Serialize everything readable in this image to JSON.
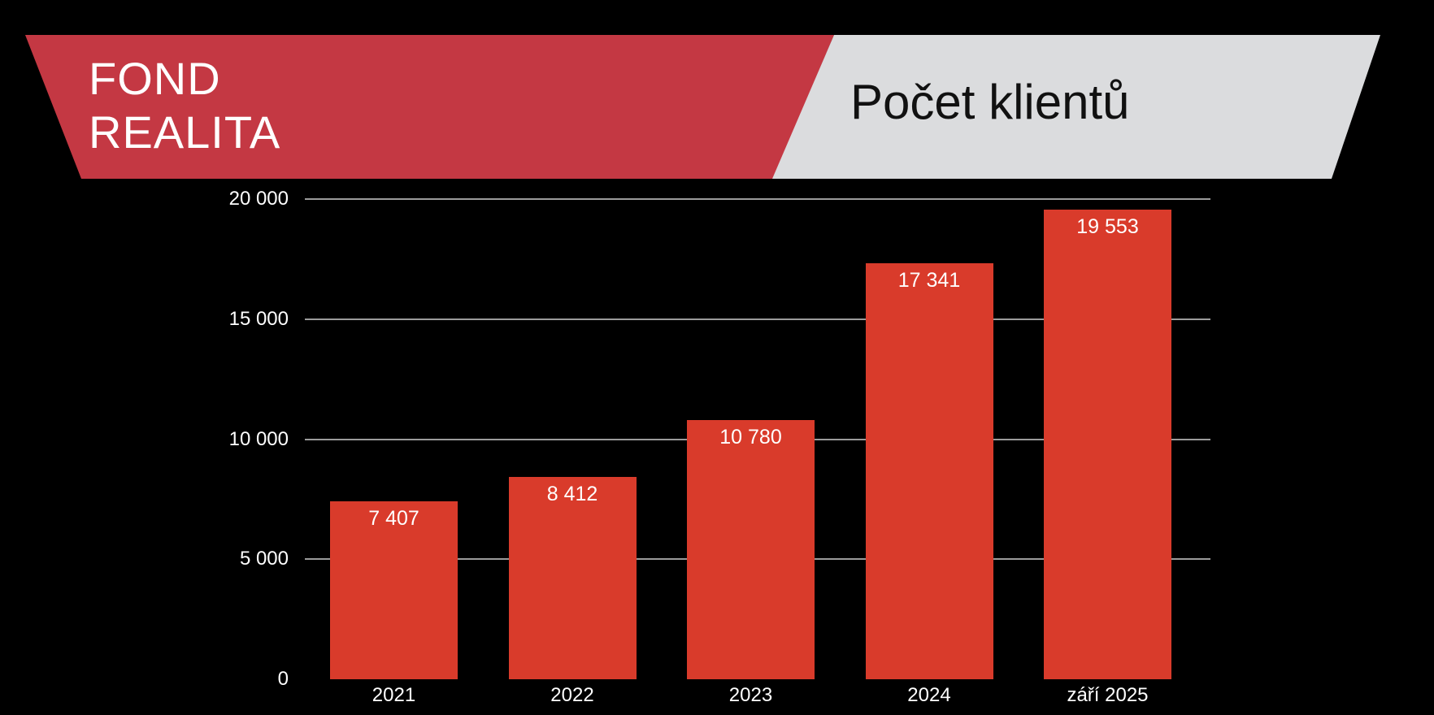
{
  "slide": {
    "background": "#000000"
  },
  "header": {
    "brand_line1": "FOND",
    "brand_line2": "REALITA",
    "brand_bg": "#C43843",
    "brand_text_color": "#FFFFFF",
    "title": "Počet klientů",
    "title_bg": "#DBDCDE",
    "title_text_color": "#111111"
  },
  "chart_data": {
    "type": "bar",
    "title": "Počet klientů",
    "categories": [
      "2021",
      "2022",
      "2023",
      "2024",
      "září 2025"
    ],
    "values": [
      7407,
      8412,
      10780,
      17341,
      19553
    ],
    "value_labels": [
      "7 407",
      "8 412",
      "10 780",
      "17 341",
      "19 553"
    ],
    "ylim": [
      0,
      20000
    ],
    "yticks": [
      {
        "value": 0,
        "label": "0"
      },
      {
        "value": 5000,
        "label": "5 000"
      },
      {
        "value": 10000,
        "label": "10 000"
      },
      {
        "value": 15000,
        "label": "15 000"
      },
      {
        "value": 20000,
        "label": "20 000"
      }
    ],
    "grid": "horizontal",
    "legend": false,
    "bar_color": "#D93B2B",
    "value_label_color": "#FFFFFF",
    "axis_label_color": "#FFFFFF",
    "grid_color": "#9B9B9B",
    "background": "#000000"
  }
}
